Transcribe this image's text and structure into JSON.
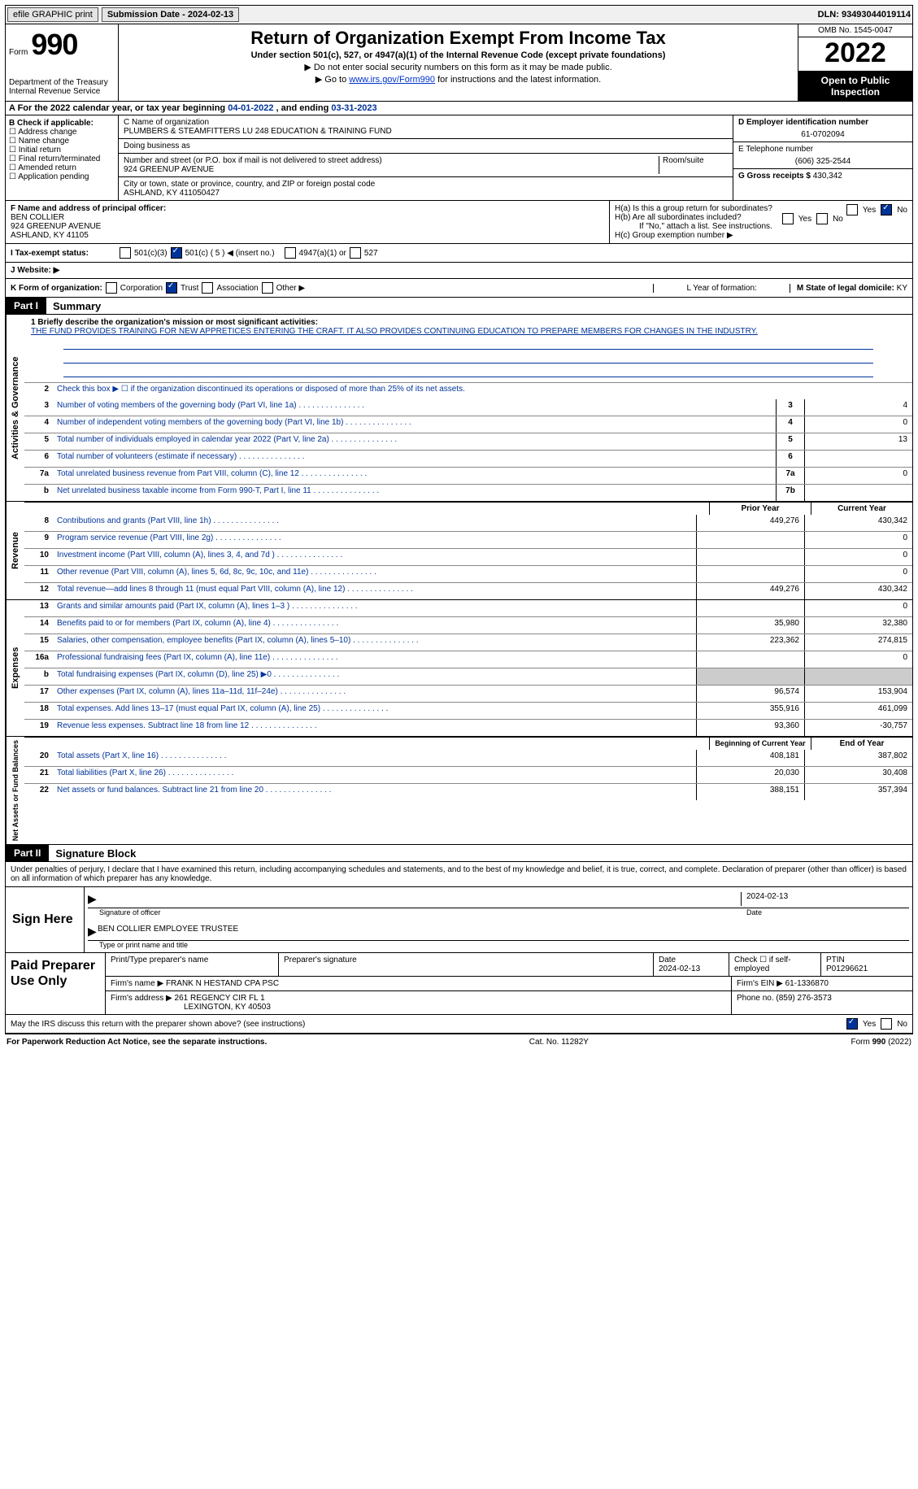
{
  "top": {
    "efile": "efile GRAPHIC print",
    "sub_label": "Submission Date - ",
    "sub_date": "2024-02-13",
    "dln_label": "DLN: ",
    "dln": "93493044019114"
  },
  "header": {
    "form_small": "Form",
    "form_num": "990",
    "dept": "Department of the Treasury\nInternal Revenue Service",
    "title": "Return of Organization Exempt From Income Tax",
    "sub1": "Under section 501(c), 527, or 4947(a)(1) of the Internal Revenue Code (except private foundations)",
    "sub2": "▶ Do not enter social security numbers on this form as it may be made public.",
    "sub3_a": "▶ Go to ",
    "sub3_link": "www.irs.gov/Form990",
    "sub3_b": " for instructions and the latest information.",
    "omb": "OMB No. 1545-0047",
    "year": "2022",
    "open": "Open to Public Inspection"
  },
  "a_line": {
    "prefix": "A For the 2022 calendar year, or tax year beginning ",
    "begin": "04-01-2022",
    "mid": " , and ending ",
    "end": "03-31-2023"
  },
  "b": {
    "title": "B Check if applicable:",
    "items": [
      "Address change",
      "Name change",
      "Initial return",
      "Final return/terminated",
      "Amended return",
      "Application pending"
    ]
  },
  "c": {
    "name_label": "C Name of organization",
    "name": "PLUMBERS & STEAMFITTERS LU 248 EDUCATION & TRAINING FUND",
    "dba_label": "Doing business as",
    "addr_label": "Number and street (or P.O. box if mail is not delivered to street address)",
    "addr": "924 GREENUP AVENUE",
    "room_label": "Room/suite",
    "city_label": "City or town, state or province, country, and ZIP or foreign postal code",
    "city": "ASHLAND, KY  411050427"
  },
  "d": {
    "ein_label": "D Employer identification number",
    "ein": "61-0702094",
    "tel_label": "E Telephone number",
    "tel": "(606) 325-2544",
    "gross_label": "G Gross receipts $ ",
    "gross": "430,342"
  },
  "f": {
    "label": "F  Name and address of principal officer:",
    "name": "BEN COLLIER",
    "addr1": "924 GREENUP AVENUE",
    "addr2": "ASHLAND, KY  41105"
  },
  "h": {
    "a_label": "H(a)  Is this a group return for subordinates?",
    "b_label": "H(b)  Are all subordinates included?",
    "note": "If \"No,\" attach a list. See instructions.",
    "c_label": "H(c)  Group exemption number ▶",
    "yes": "Yes",
    "no": "No"
  },
  "i": {
    "label": "I  Tax-exempt status:",
    "c3": "501(c)(3)",
    "c": "501(c) ( 5 ) ◀ (insert no.)",
    "a1": "4947(a)(1) or",
    "s527": "527"
  },
  "j": {
    "label": "J  Website: ▶"
  },
  "k": {
    "label": "K Form of organization:",
    "corp": "Corporation",
    "trust": "Trust",
    "assoc": "Association",
    "other": "Other ▶",
    "l_label": "L Year of formation:",
    "m_label": "M State of legal domicile: ",
    "m_val": "KY"
  },
  "part1": {
    "tab": "Part I",
    "title": "Summary"
  },
  "summary": {
    "side_act": "Activities & Governance",
    "side_rev": "Revenue",
    "side_exp": "Expenses",
    "side_net": "Net Assets or Fund Balances",
    "line1_label": "1  Briefly describe the organization's mission or most significant activities:",
    "mission": "THE FUND PROVIDES TRAINING FOR NEW APPRETICES ENTERING THE CRAFT. IT ALSO PROVIDES CONTINUING EDUCATION TO PREPARE MEMBERS FOR CHANGES IN THE INDUSTRY.",
    "line2": "Check this box ▶ ☐ if the organization discontinued its operations or disposed of more than 25% of its net assets.",
    "lines_a": [
      {
        "n": "3",
        "d": "Number of voting members of the governing body (Part VI, line 1a)",
        "box": "3",
        "v": "4"
      },
      {
        "n": "4",
        "d": "Number of independent voting members of the governing body (Part VI, line 1b)",
        "box": "4",
        "v": "0"
      },
      {
        "n": "5",
        "d": "Total number of individuals employed in calendar year 2022 (Part V, line 2a)",
        "box": "5",
        "v": "13"
      },
      {
        "n": "6",
        "d": "Total number of volunteers (estimate if necessary)",
        "box": "6",
        "v": ""
      },
      {
        "n": "7a",
        "d": "Total unrelated business revenue from Part VIII, column (C), line 12",
        "box": "7a",
        "v": "0"
      },
      {
        "n": "b",
        "d": "Net unrelated business taxable income from Form 990-T, Part I, line 11",
        "box": "7b",
        "v": ""
      }
    ],
    "prior_hdr": "Prior Year",
    "curr_hdr": "Current Year",
    "lines_b": [
      {
        "n": "8",
        "d": "Contributions and grants (Part VIII, line 1h)",
        "p": "449,276",
        "c": "430,342"
      },
      {
        "n": "9",
        "d": "Program service revenue (Part VIII, line 2g)",
        "p": "",
        "c": "0"
      },
      {
        "n": "10",
        "d": "Investment income (Part VIII, column (A), lines 3, 4, and 7d )",
        "p": "",
        "c": "0"
      },
      {
        "n": "11",
        "d": "Other revenue (Part VIII, column (A), lines 5, 6d, 8c, 9c, 10c, and 11e)",
        "p": "",
        "c": "0"
      },
      {
        "n": "12",
        "d": "Total revenue—add lines 8 through 11 (must equal Part VIII, column (A), line 12)",
        "p": "449,276",
        "c": "430,342"
      }
    ],
    "lines_c": [
      {
        "n": "13",
        "d": "Grants and similar amounts paid (Part IX, column (A), lines 1–3 )",
        "p": "",
        "c": "0"
      },
      {
        "n": "14",
        "d": "Benefits paid to or for members (Part IX, column (A), line 4)",
        "p": "35,980",
        "c": "32,380"
      },
      {
        "n": "15",
        "d": "Salaries, other compensation, employee benefits (Part IX, column (A), lines 5–10)",
        "p": "223,362",
        "c": "274,815"
      },
      {
        "n": "16a",
        "d": "Professional fundraising fees (Part IX, column (A), line 11e)",
        "p": "",
        "c": "0"
      },
      {
        "n": "b",
        "d": "Total fundraising expenses (Part IX, column (D), line 25) ▶0",
        "p": "shade",
        "c": "shade"
      },
      {
        "n": "17",
        "d": "Other expenses (Part IX, column (A), lines 11a–11d, 11f–24e)",
        "p": "96,574",
        "c": "153,904"
      },
      {
        "n": "18",
        "d": "Total expenses. Add lines 13–17 (must equal Part IX, column (A), line 25)",
        "p": "355,916",
        "c": "461,099"
      },
      {
        "n": "19",
        "d": "Revenue less expenses. Subtract line 18 from line 12",
        "p": "93,360",
        "c": "-30,757"
      }
    ],
    "begin_hdr": "Beginning of Current Year",
    "end_hdr": "End of Year",
    "lines_d": [
      {
        "n": "20",
        "d": "Total assets (Part X, line 16)",
        "p": "408,181",
        "c": "387,802"
      },
      {
        "n": "21",
        "d": "Total liabilities (Part X, line 26)",
        "p": "20,030",
        "c": "30,408"
      },
      {
        "n": "22",
        "d": "Net assets or fund balances. Subtract line 21 from line 20",
        "p": "388,151",
        "c": "357,394"
      }
    ]
  },
  "part2": {
    "tab": "Part II",
    "title": "Signature Block"
  },
  "sig": {
    "decl": "Under penalties of perjury, I declare that I have examined this return, including accompanying schedules and statements, and to the best of my knowledge and belief, it is true, correct, and complete. Declaration of preparer (other than officer) is based on all information of which preparer has any knowledge.",
    "sign_here": "Sign Here",
    "sig_officer": "Signature of officer",
    "date": "Date",
    "date_val": "2024-02-13",
    "name_title": "BEN COLLIER  EMPLOYEE TRUSTEE",
    "type_label": "Type or print name and title"
  },
  "paid": {
    "label": "Paid Preparer Use Only",
    "h1": "Print/Type preparer's name",
    "h2": "Preparer's signature",
    "h3": "Date",
    "h3v": "2024-02-13",
    "h4": "Check ☐ if self-employed",
    "h5": "PTIN",
    "h5v": "P01296621",
    "firm_label": "Firm's name    ▶ ",
    "firm": "FRANK N HESTAND CPA PSC",
    "ein_label": "Firm's EIN ▶ ",
    "ein": "61-1336870",
    "addr_label": "Firm's address ▶ ",
    "addr1": "261 REGENCY CIR FL 1",
    "addr2": "LEXINGTON, KY  40503",
    "phone_label": "Phone no. ",
    "phone": "(859) 276-3573"
  },
  "may": {
    "q": "May the IRS discuss this return with the preparer shown above? (see instructions)",
    "yes": "Yes",
    "no": "No"
  },
  "footer": {
    "left": "For Paperwork Reduction Act Notice, see the separate instructions.",
    "mid": "Cat. No. 11282Y",
    "right": "Form 990 (2022)"
  }
}
